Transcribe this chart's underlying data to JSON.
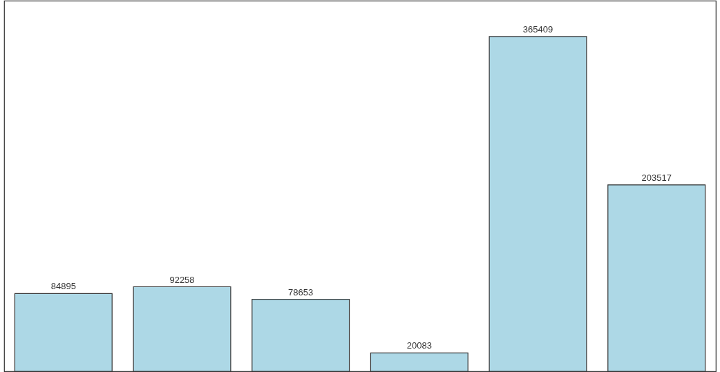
{
  "chart_data": {
    "type": "bar",
    "categories": [
      null,
      null,
      null,
      null,
      null,
      null
    ],
    "values": [
      84895,
      92258,
      78653,
      20083,
      365409,
      203517
    ],
    "color": "#add8e6",
    "data_labels": true
  }
}
